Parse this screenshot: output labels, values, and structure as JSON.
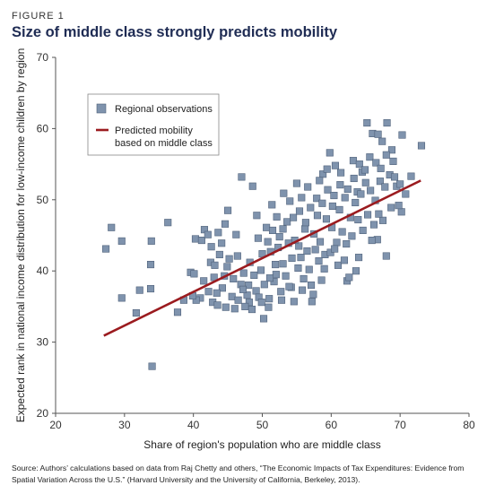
{
  "header": {
    "figure_label": "FIGURE 1",
    "title": "Size of middle class strongly predicts mobility"
  },
  "source_note": "Source: Authors’ calculations based on data from Raj Chetty and others, “The Economic Impacts of Tax Expenditures: Evidence from Spatial Variation Across the U.S.” (Harvard University and the University of California, Berkeley, 2013).",
  "colors": {
    "marker_fill": "#7f93ad",
    "marker_stroke": "#4f617a",
    "line": "#9b1b1f",
    "title": "#1f2c54"
  },
  "chart_data": {
    "type": "scatter",
    "title": "Size of middle class strongly predicts mobility",
    "xlabel": "Share of region's population who are middle class",
    "ylabel": "Expected rank in national income distribution for low-income children by region",
    "xlim": [
      20,
      80
    ],
    "ylim": [
      20,
      70
    ],
    "xticks": [
      "20",
      "30",
      "40",
      "50",
      "60",
      "70",
      "80"
    ],
    "yticks": [
      "20",
      "30",
      "40",
      "50",
      "60",
      "70"
    ],
    "grid": false,
    "legend": {
      "position": "top-left",
      "entries": [
        "Regional observations",
        "Predicted mobility based on middle class"
      ]
    },
    "series": [
      {
        "name": "Regional observations",
        "kind": "scatter",
        "points": [
          [
            27.3,
            43.1
          ],
          [
            28.1,
            46.1
          ],
          [
            29.6,
            44.2
          ],
          [
            29.6,
            36.2
          ],
          [
            31.7,
            34.1
          ],
          [
            32.2,
            37.3
          ],
          [
            33.8,
            37.5
          ],
          [
            33.9,
            44.2
          ],
          [
            34.0,
            26.6
          ],
          [
            33.8,
            40.9
          ],
          [
            36.3,
            46.8
          ],
          [
            37.7,
            34.2
          ],
          [
            38.6,
            35.9
          ],
          [
            39.6,
            39.8
          ],
          [
            40.1,
            39.6
          ],
          [
            40.3,
            44.5
          ],
          [
            41.2,
            44.3
          ],
          [
            41.6,
            45.8
          ],
          [
            42.1,
            45.1
          ],
          [
            42.5,
            41.2
          ],
          [
            43.0,
            39.1
          ],
          [
            43.6,
            45.4
          ],
          [
            44.1,
            43.9
          ],
          [
            44.6,
            46.6
          ],
          [
            45.0,
            48.5
          ],
          [
            46.2,
            45.1
          ],
          [
            47.0,
            53.2
          ],
          [
            48.6,
            51.9
          ],
          [
            48.1,
            35.6
          ],
          [
            49.1,
            37.2
          ],
          [
            50.2,
            33.3
          ],
          [
            51.0,
            36.1
          ],
          [
            52.0,
            39.5
          ],
          [
            53.1,
            50.9
          ],
          [
            54.2,
            37.7
          ],
          [
            55.0,
            52.3
          ],
          [
            56.2,
            45.9
          ],
          [
            57.2,
            35.7
          ],
          [
            58.0,
            47.8
          ],
          [
            58.8,
            53.6
          ],
          [
            59.8,
            56.6
          ],
          [
            60.1,
            46.1
          ],
          [
            60.6,
            54.8
          ],
          [
            61.4,
            53.8
          ],
          [
            62.3,
            38.6
          ],
          [
            63.2,
            55.5
          ],
          [
            63.8,
            51.1
          ],
          [
            64.5,
            53.9
          ],
          [
            65.2,
            60.8
          ],
          [
            66.0,
            59.3
          ],
          [
            66.8,
            59.2
          ],
          [
            67.4,
            58.2
          ],
          [
            68.1,
            60.8
          ],
          [
            68.8,
            57.0
          ],
          [
            69.5,
            51.9
          ],
          [
            70.2,
            48.3
          ],
          [
            70.3,
            59.1
          ],
          [
            71.6,
            53.3
          ],
          [
            73.1,
            57.6
          ],
          [
            68.0,
            42.1
          ],
          [
            66.7,
            44.4
          ],
          [
            65.9,
            44.3
          ],
          [
            64.0,
            41.9
          ],
          [
            63.6,
            40.0
          ],
          [
            62.6,
            39.1
          ],
          [
            61.0,
            40.8
          ],
          [
            59.1,
            42.3
          ],
          [
            57.1,
            38.0
          ],
          [
            55.3,
            43.5
          ],
          [
            54.6,
            35.7
          ],
          [
            53.0,
            41.0
          ],
          [
            51.7,
            38.5
          ],
          [
            50.6,
            46.1
          ],
          [
            49.4,
            44.6
          ],
          [
            48.2,
            41.2
          ],
          [
            47.3,
            39.7
          ],
          [
            46.4,
            42.1
          ],
          [
            45.6,
            36.4
          ],
          [
            44.9,
            40.6
          ],
          [
            44.2,
            37.6
          ],
          [
            43.4,
            36.9
          ],
          [
            42.8,
            35.6
          ],
          [
            42.2,
            37.1
          ],
          [
            41.5,
            38.6
          ],
          [
            41.0,
            36.2
          ],
          [
            40.4,
            35.9
          ],
          [
            39.9,
            36.5
          ],
          [
            46.9,
            38.1
          ],
          [
            47.8,
            36.6
          ],
          [
            49.8,
            40.1
          ],
          [
            51.2,
            42.7
          ],
          [
            52.5,
            44.8
          ],
          [
            53.6,
            46.9
          ],
          [
            54.7,
            44.3
          ],
          [
            55.6,
            41.9
          ],
          [
            56.5,
            42.8
          ],
          [
            57.5,
            45.2
          ],
          [
            58.4,
            44.1
          ],
          [
            59.3,
            47.3
          ],
          [
            60.2,
            49.1
          ],
          [
            61.2,
            48.6
          ],
          [
            62.0,
            50.3
          ],
          [
            62.8,
            47.5
          ],
          [
            63.5,
            49.6
          ],
          [
            64.3,
            50.8
          ],
          [
            65.0,
            52.4
          ],
          [
            65.7,
            51.3
          ],
          [
            66.4,
            49.9
          ],
          [
            67.1,
            52.6
          ],
          [
            67.8,
            51.8
          ],
          [
            68.5,
            53.5
          ],
          [
            69.0,
            55.4
          ],
          [
            68.7,
            48.9
          ],
          [
            67.5,
            47.1
          ],
          [
            66.2,
            46.5
          ],
          [
            65.3,
            47.9
          ],
          [
            64.6,
            45.7
          ],
          [
            63.9,
            47.2
          ],
          [
            63.0,
            44.9
          ],
          [
            62.2,
            43.8
          ],
          [
            61.6,
            45.5
          ],
          [
            60.8,
            44.0
          ],
          [
            59.9,
            42.6
          ],
          [
            59.0,
            40.3
          ],
          [
            58.2,
            41.4
          ],
          [
            57.7,
            43.0
          ],
          [
            56.8,
            40.2
          ],
          [
            56.0,
            38.9
          ],
          [
            55.2,
            40.4
          ],
          [
            54.3,
            41.8
          ],
          [
            53.4,
            39.3
          ],
          [
            52.7,
            37.1
          ],
          [
            51.9,
            40.9
          ],
          [
            51.1,
            39.0
          ],
          [
            50.3,
            38.1
          ],
          [
            49.5,
            36.3
          ],
          [
            48.8,
            39.4
          ],
          [
            48.0,
            38.0
          ],
          [
            47.2,
            37.4
          ],
          [
            46.5,
            35.9
          ],
          [
            45.8,
            38.9
          ],
          [
            45.2,
            41.7
          ],
          [
            44.5,
            39.3
          ],
          [
            43.8,
            42.3
          ],
          [
            43.1,
            40.8
          ],
          [
            42.6,
            43.4
          ],
          [
            49.2,
            47.8
          ],
          [
            50.0,
            42.4
          ],
          [
            50.8,
            44.1
          ],
          [
            51.5,
            45.7
          ],
          [
            52.3,
            43.3
          ],
          [
            53.0,
            45.9
          ],
          [
            53.8,
            43.9
          ],
          [
            54.5,
            47.5
          ],
          [
            55.4,
            48.4
          ],
          [
            56.3,
            46.8
          ],
          [
            57.0,
            48.9
          ],
          [
            57.9,
            50.2
          ],
          [
            58.7,
            49.5
          ],
          [
            59.5,
            51.4
          ],
          [
            60.4,
            50.6
          ],
          [
            61.3,
            52.1
          ],
          [
            62.4,
            51.5
          ],
          [
            63.3,
            53.0
          ],
          [
            64.1,
            55.0
          ],
          [
            64.9,
            54.2
          ],
          [
            65.6,
            56.0
          ],
          [
            66.5,
            55.2
          ],
          [
            67.2,
            54.4
          ],
          [
            68.0,
            56.3
          ],
          [
            69.2,
            53.2
          ],
          [
            70.0,
            52.2
          ],
          [
            70.8,
            50.8
          ],
          [
            69.8,
            49.2
          ],
          [
            66.9,
            48.0
          ],
          [
            61.9,
            41.5
          ],
          [
            60.5,
            43.1
          ],
          [
            58.6,
            38.7
          ],
          [
            57.4,
            36.7
          ],
          [
            55.8,
            37.3
          ],
          [
            53.9,
            37.8
          ],
          [
            52.8,
            35.9
          ],
          [
            50.9,
            34.9
          ],
          [
            49.9,
            35.6
          ],
          [
            48.5,
            34.6
          ],
          [
            47.5,
            35.0
          ],
          [
            46.0,
            34.7
          ],
          [
            44.7,
            34.9
          ],
          [
            43.5,
            35.2
          ],
          [
            51.4,
            49.3
          ],
          [
            52.1,
            47.6
          ],
          [
            54.0,
            49.8
          ],
          [
            55.7,
            50.3
          ],
          [
            56.6,
            51.8
          ],
          [
            58.3,
            52.7
          ],
          [
            59.4,
            54.3
          ]
        ]
      },
      {
        "name": "Predicted mobility based on middle class",
        "kind": "line",
        "points": [
          [
            27.0,
            30.9
          ],
          [
            73.0,
            52.7
          ]
        ]
      }
    ]
  }
}
